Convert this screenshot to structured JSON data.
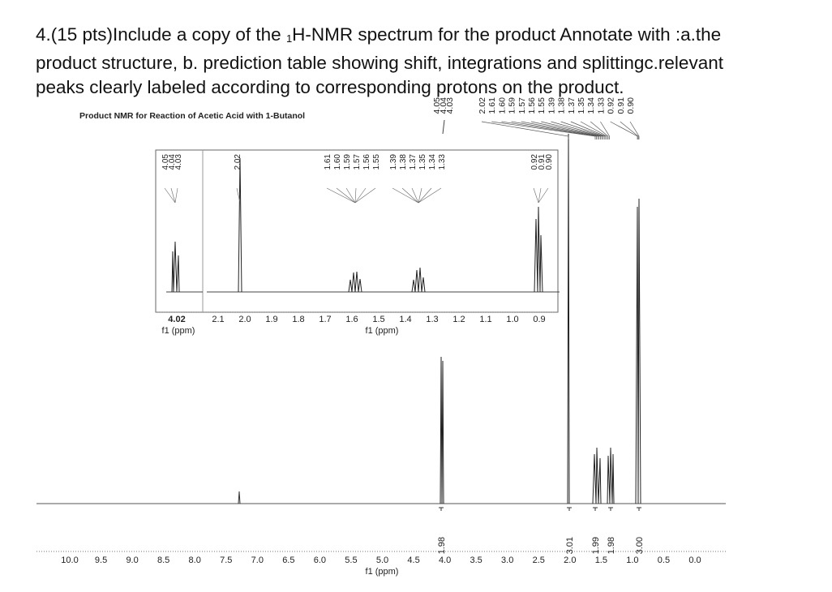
{
  "question": {
    "line1_start": "4.(15 pts)Include a copy of the ",
    "line1_sub": "1",
    "line1_end": "H-NMR spectrum for the product Annotate with :a.the",
    "line2": "product structure, b. prediction table showing shift, integrations and splittingc.relevant",
    "line3": "peaks clearly labeled according to corresponding protons on the product."
  },
  "spectrum": {
    "title": "Product NMR for Reaction of Acetic Acid with 1-Butanol",
    "top_labels_left": [
      "4.05",
      "4.04",
      "4.03"
    ],
    "top_labels_right": [
      "2.02",
      "1.61",
      "1.60",
      "1.59",
      "1.57",
      "1.56",
      "1.55",
      "1.39",
      "1.38",
      "1.37",
      "1.35",
      "1.34",
      "1.33",
      "0.92",
      "0.91",
      "0.90"
    ],
    "inset": {
      "labels_a": [
        "4.05",
        "4.04",
        "4.03"
      ],
      "labels_b": [
        "2.02"
      ],
      "labels_c": [
        "1.61",
        "1.60",
        "1.59",
        "1.57",
        "1.56",
        "1.55"
      ],
      "labels_d": [
        "1.39",
        "1.38",
        "1.37",
        "1.35",
        "1.34",
        "1.33"
      ],
      "labels_e": [
        "0.92",
        "0.91",
        "0.90"
      ],
      "axis_left_tick": "4.02",
      "axis_left_label": "f1 (ppm)",
      "axis_ticks": [
        "2.1",
        "2.0",
        "1.9",
        "1.8",
        "1.7",
        "1.6",
        "1.5",
        "1.4",
        "1.3",
        "1.2",
        "1.1",
        "1.0",
        "0.9"
      ],
      "axis_label": "f1 (ppm)"
    },
    "axis_ticks": [
      "10.0",
      "9.5",
      "9.0",
      "8.5",
      "8.0",
      "7.5",
      "7.0",
      "6.5",
      "6.0",
      "5.5",
      "5.0",
      "4.5",
      "4.0",
      "3.5",
      "3.0",
      "2.5",
      "2.0",
      "1.5",
      "1.0",
      "0.5",
      "0.0"
    ],
    "axis_label": "f1 (ppm)",
    "integrations": [
      "1.98",
      "3.01",
      "1.99",
      "1.98",
      "3.00"
    ]
  }
}
